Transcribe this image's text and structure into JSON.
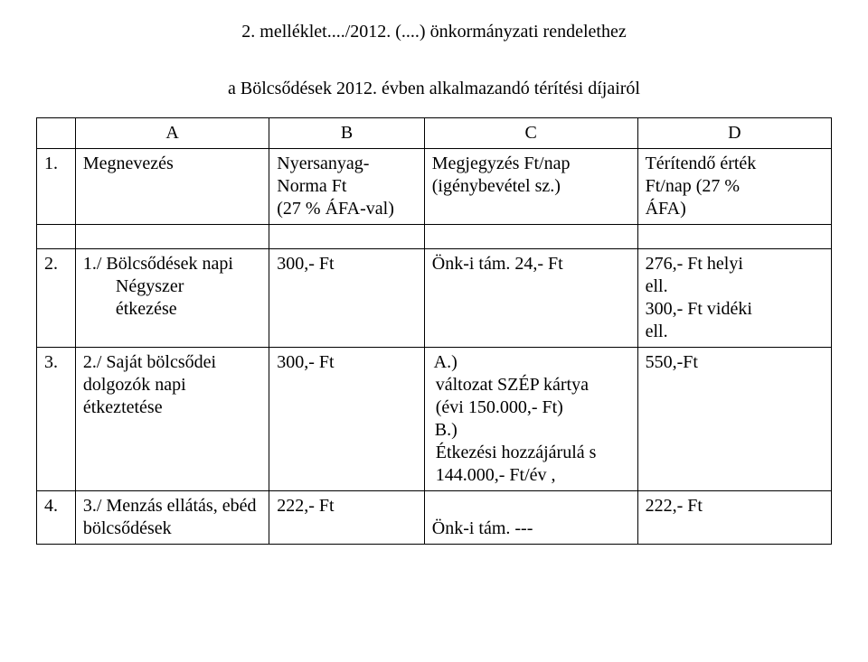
{
  "title": "2. melléklet..../2012. (....) önkormányzati rendelethez",
  "subtitle": "a Bölcsődések 2012. évben alkalmazandó térítési díjairól",
  "header": {
    "colA": "A",
    "colB": "B",
    "colC": "C",
    "colD": "D"
  },
  "row1": {
    "num": "1.",
    "name": "Megnevezés",
    "b_line1": "Nyersanyag-",
    "b_line2": "Norma Ft",
    "b_line3": "(27 % ÁFA-val)",
    "c_line1": "Megjegyzés Ft/nap",
    "c_line2": "(igénybevétel sz.)",
    "d_line1": "Térítendő érték",
    "d_line2": "Ft/nap (27 %",
    "d_line3": "ÁFA)"
  },
  "row2": {
    "num": "2.",
    "name_line1": "1./ Bölcsődések napi",
    "name_sub1": "Négyszer",
    "name_sub2": "étkezése",
    "b": "300,- Ft",
    "c": "Önk-i tám. 24,- Ft",
    "d_line1": "276,- Ft helyi",
    "d_line2": "ell.",
    "d_line3": "300,- Ft vidéki",
    "d_line4": "ell."
  },
  "row3": {
    "num": "3.",
    "name_line1": "2./ Saját bölcsődei",
    "name_line2": "dolgozók napi",
    "name_line3": "étkeztetése",
    "b": "300,- Ft",
    "c_optA_label": "A.)",
    "c_optA_text": "változat SZÉP kártya (évi 150.000,- Ft)",
    "c_optB_label": "B.)",
    "c_optB_text": "Étkezési hozzájárulá s 144.000,- Ft/év ,",
    "d": "550,-Ft"
  },
  "row4": {
    "num": "4.",
    "name_line1": "3./ Menzás ellátás, ebéd",
    "name_line2": "bölcsődések",
    "b": "222,- Ft",
    "c": "Önk-i tám.  ---",
    "d": "222,- Ft"
  }
}
